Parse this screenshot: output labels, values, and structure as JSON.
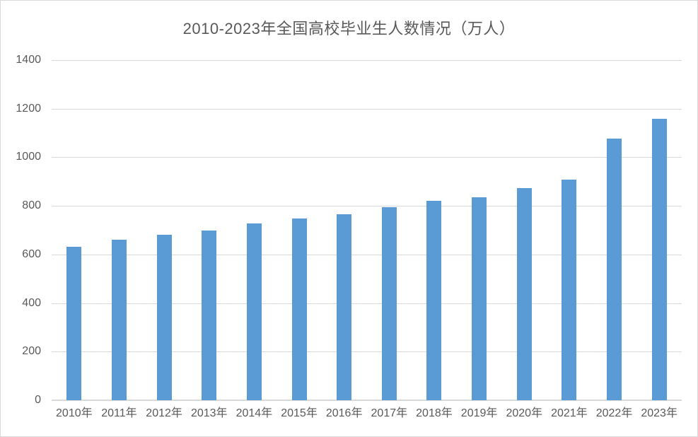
{
  "chart_data": {
    "type": "bar",
    "title": "2010-2023年全国高校毕业生人数情况（万人）",
    "categories": [
      "2010年",
      "2011年",
      "2012年",
      "2013年",
      "2014年",
      "2015年",
      "2016年",
      "2017年",
      "2018年",
      "2019年",
      "2020年",
      "2021年",
      "2022年",
      "2023年"
    ],
    "values": [
      631,
      660,
      680,
      699,
      727,
      749,
      765,
      795,
      820,
      834,
      874,
      909,
      1076,
      1158
    ],
    "xlabel": "",
    "ylabel": "",
    "ylim": [
      0,
      1400
    ],
    "yticks": [
      0,
      200,
      400,
      600,
      800,
      1000,
      1200,
      1400
    ],
    "grid": "horizontal",
    "legend_position": "none"
  },
  "colors": {
    "bar_fill": "#5b9bd5",
    "gridline": "#d9d9d9",
    "axis_line": "#d9d9d9",
    "title_text": "#595959",
    "tick_text": "#595959",
    "background": "#ffffff",
    "border": "#d9d9d9"
  }
}
